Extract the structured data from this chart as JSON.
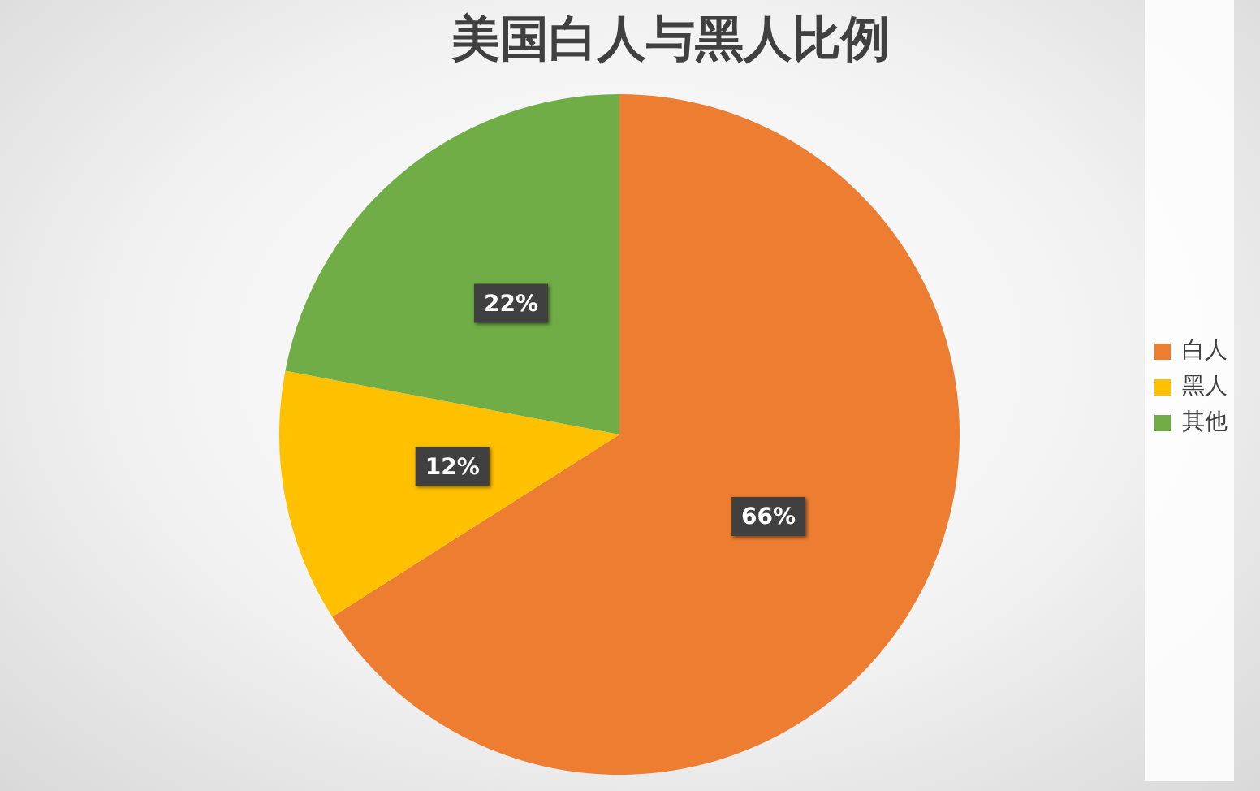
{
  "chart_data": {
    "type": "pie",
    "title": "美国白人与黑人比例",
    "categories": [
      "白人",
      "黑人",
      "其他"
    ],
    "values": [
      66,
      12,
      22
    ],
    "colors": [
      "#ed7d31",
      "#ffc000",
      "#70ad47"
    ],
    "value_labels": [
      "66%",
      "12%",
      "22%"
    ],
    "legend": "right"
  }
}
